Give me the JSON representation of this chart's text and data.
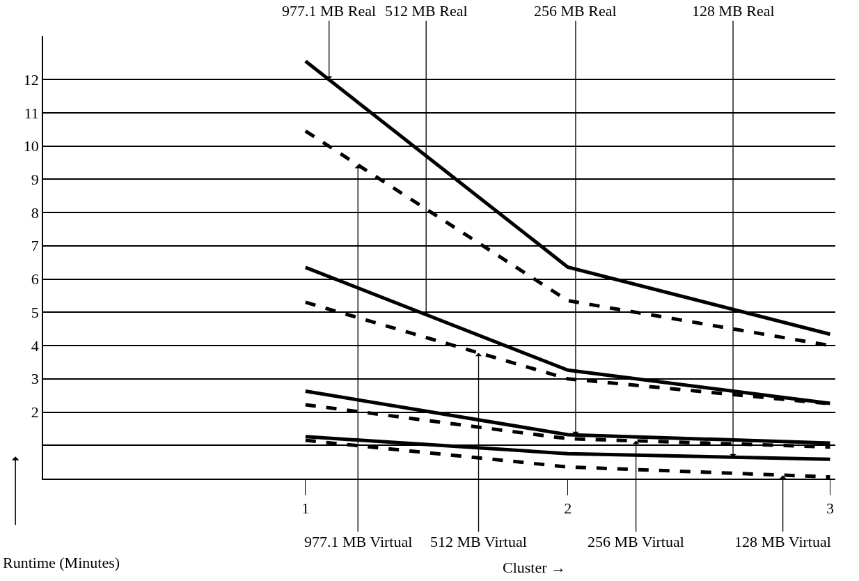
{
  "chart_data": {
    "type": "line",
    "xlabel": "Cluster →",
    "ylabel": "Runtime (Minutes)",
    "x": [
      1,
      2,
      3
    ],
    "series": [
      {
        "color": "#000000",
        "line_style": "solid",
        "values": [
          12.55,
          6.36,
          4.34
        ]
      },
      {
        "color": "#000000",
        "line_style": "dashed",
        "values": [
          10.45,
          5.35,
          4.0
        ]
      },
      {
        "color": "#000000",
        "line_style": "solid",
        "values": [
          6.35,
          3.26,
          2.26
        ]
      },
      {
        "color": "#000000",
        "line_style": "dashed",
        "values": [
          5.3,
          3.0,
          2.25
        ]
      },
      {
        "color": "#000000",
        "line_style": "solid",
        "values": [
          2.63,
          1.32,
          1.07
        ]
      },
      {
        "color": "#000000",
        "line_style": "dashed",
        "values": [
          2.22,
          1.2,
          0.95
        ]
      },
      {
        "color": "#000000",
        "line_style": "solid",
        "values": [
          1.26,
          0.75,
          0.58
        ]
      },
      {
        "color": "#000000",
        "line_style": "dashed",
        "values": [
          1.15,
          0.35,
          0.05
        ]
      }
    ],
    "annotations": [
      {
        "text": "977.1 MB Real",
        "x": 1.09,
        "y": 12.0
      },
      {
        "text": "512 MB Real",
        "x": 1.46,
        "y": 4.93
      },
      {
        "text": "256 MB Real",
        "x": 2.03,
        "y": 1.31
      },
      {
        "text": "128 MB Real",
        "x": 2.63,
        "y": 0.64
      },
      {
        "text": "977.1 MB Virtual",
        "x": 1.2,
        "y": 9.43
      },
      {
        "text": "512 MB Virtual",
        "x": 1.66,
        "y": 3.78
      },
      {
        "text": "256 MB Virtual",
        "x": 2.26,
        "y": 1.14
      },
      {
        "text": "128 MB Virtual",
        "x": 2.82,
        "y": 0.1
      }
    ],
    "xlim": [
      0,
      3.02
    ],
    "xticks": [
      1,
      2,
      3
    ],
    "ylim": [
      0,
      13.3
    ],
    "yticks": [
      {
        "value": 1,
        "label": null
      },
      2,
      3,
      4,
      5,
      6,
      7,
      8,
      9,
      10,
      11,
      12
    ],
    "grid": "y",
    "marker": "none"
  }
}
